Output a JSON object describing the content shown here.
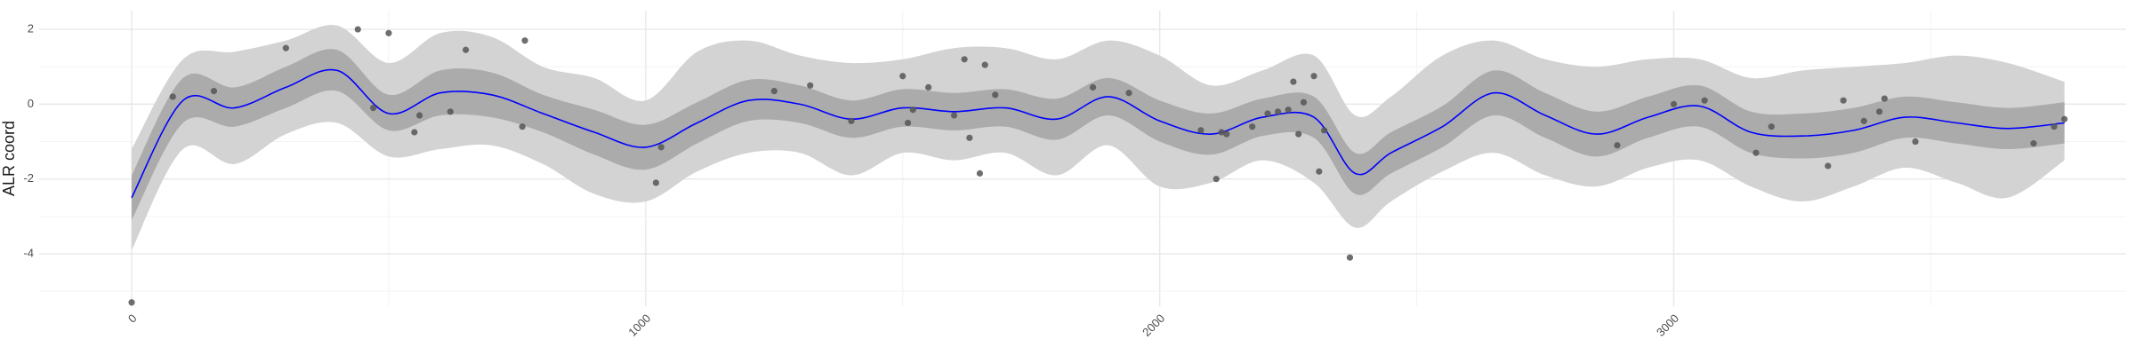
{
  "chart_data": {
    "type": "line",
    "title": "",
    "xlabel": "",
    "ylabel": "ALR coord",
    "xlim": [
      -180,
      3880
    ],
    "ylim": [
      -5.4,
      2.5
    ],
    "x_ticks": [
      0,
      1000,
      2000,
      3000
    ],
    "x_tick_labels": [
      "0",
      "1000",
      "2000",
      "3000"
    ],
    "y_ticks": [
      -4,
      -2,
      0,
      2
    ],
    "y_tick_labels": [
      "-4",
      "-2",
      "0",
      "2"
    ],
    "grid": true,
    "legend": "none",
    "colors": {
      "mean_line": "#0000ff",
      "inner_band": "#ababab",
      "outer_band": "#d3d3d3",
      "points": "#555555",
      "grid_major": "#e8e8e8",
      "grid_minor": "#f3f3f3"
    },
    "series": [
      {
        "kind": "line",
        "x": [
          0,
          100,
          200,
          300,
          400,
          500,
          600,
          700,
          800,
          900,
          1000,
          1100,
          1200,
          1300,
          1400,
          1500,
          1600,
          1700,
          1800,
          1900,
          2000,
          2100,
          2200,
          2300,
          2380,
          2450,
          2550,
          2650,
          2750,
          2850,
          2950,
          3050,
          3150,
          3250,
          3350,
          3450,
          3550,
          3650,
          3760
        ],
        "y": [
          -2.5,
          0.1,
          -0.1,
          0.45,
          0.9,
          -0.25,
          0.3,
          0.25,
          -0.25,
          -0.75,
          -1.15,
          -0.5,
          0.1,
          0.0,
          -0.4,
          -0.1,
          -0.2,
          -0.1,
          -0.4,
          0.2,
          -0.45,
          -0.8,
          -0.35,
          -0.35,
          -1.85,
          -1.3,
          -0.6,
          0.3,
          -0.3,
          -0.8,
          -0.35,
          -0.05,
          -0.75,
          -0.85,
          -0.7,
          -0.35,
          -0.5,
          -0.65,
          -0.5
        ]
      },
      {
        "kind": "band-inner",
        "x": [
          0,
          100,
          200,
          300,
          400,
          500,
          600,
          700,
          800,
          900,
          1000,
          1100,
          1200,
          1300,
          1400,
          1500,
          1600,
          1700,
          1800,
          1900,
          2000,
          2100,
          2200,
          2300,
          2380,
          2450,
          2550,
          2650,
          2750,
          2850,
          2950,
          3050,
          3150,
          3250,
          3350,
          3450,
          3550,
          3650,
          3760
        ],
        "lower": [
          -3.1,
          -0.5,
          -0.6,
          -0.1,
          0.35,
          -0.7,
          -0.3,
          -0.35,
          -0.75,
          -1.35,
          -1.75,
          -1.05,
          -0.45,
          -0.5,
          -0.9,
          -0.6,
          -0.7,
          -0.6,
          -0.95,
          -0.3,
          -1.0,
          -1.35,
          -0.85,
          -0.9,
          -2.4,
          -1.85,
          -1.15,
          -0.3,
          -0.9,
          -1.4,
          -0.9,
          -0.6,
          -1.3,
          -1.45,
          -1.3,
          -0.9,
          -1.05,
          -1.2,
          -1.05
        ],
        "upper": [
          -1.9,
          0.7,
          0.45,
          1.0,
          1.45,
          0.25,
          0.9,
          0.85,
          0.25,
          -0.15,
          -0.55,
          0.05,
          0.65,
          0.5,
          0.1,
          0.4,
          0.3,
          0.4,
          0.15,
          0.7,
          0.1,
          -0.25,
          0.15,
          0.2,
          -1.3,
          -0.75,
          -0.05,
          0.9,
          0.3,
          -0.2,
          0.2,
          0.5,
          -0.2,
          -0.25,
          -0.1,
          0.2,
          0.05,
          -0.1,
          0.05
        ]
      },
      {
        "kind": "band-outer",
        "x": [
          0,
          100,
          200,
          300,
          400,
          500,
          600,
          700,
          800,
          900,
          1000,
          1100,
          1200,
          1300,
          1400,
          1500,
          1600,
          1700,
          1800,
          1900,
          2000,
          2100,
          2200,
          2300,
          2380,
          2450,
          2550,
          2650,
          2750,
          2850,
          2950,
          3050,
          3150,
          3250,
          3350,
          3450,
          3550,
          3650,
          3760
        ],
        "lower": [
          -3.9,
          -1.2,
          -1.6,
          -0.8,
          -0.5,
          -1.4,
          -1.2,
          -1.1,
          -1.6,
          -2.4,
          -2.6,
          -1.8,
          -1.3,
          -1.3,
          -1.9,
          -1.3,
          -1.5,
          -1.3,
          -1.9,
          -1.1,
          -2.2,
          -2.1,
          -1.5,
          -2.1,
          -3.3,
          -2.6,
          -1.8,
          -1.3,
          -1.9,
          -2.2,
          -1.7,
          -1.5,
          -2.2,
          -2.6,
          -2.2,
          -1.7,
          -2.1,
          -2.5,
          -1.5
        ],
        "upper": [
          -1.2,
          1.2,
          1.4,
          1.7,
          2.1,
          1.1,
          1.9,
          1.8,
          1.0,
          0.7,
          0.1,
          1.4,
          1.7,
          1.3,
          1.1,
          1.2,
          1.5,
          1.5,
          1.2,
          1.7,
          1.3,
          0.5,
          0.9,
          1.3,
          -0.3,
          0.2,
          1.3,
          1.7,
          1.2,
          1.0,
          1.2,
          1.2,
          0.7,
          0.9,
          1.0,
          1.1,
          1.3,
          1.1,
          0.6
        ]
      },
      {
        "kind": "points",
        "x": [
          0,
          80,
          160,
          300,
          440,
          470,
          500,
          550,
          560,
          620,
          650,
          760,
          765,
          1020,
          1030,
          1250,
          1320,
          1400,
          1500,
          1510,
          1520,
          1550,
          1600,
          1620,
          1630,
          1650,
          1660,
          1680,
          1870,
          1940,
          2080,
          2110,
          2120,
          2130,
          2180,
          2210,
          2230,
          2250,
          2260,
          2270,
          2280,
          2300,
          2310,
          2320,
          2370,
          2890,
          3000,
          3060,
          3160,
          3190,
          3300,
          3330,
          3370,
          3400,
          3410,
          3470,
          3700,
          3740,
          3760
        ],
        "y": [
          -5.3,
          0.2,
          0.35,
          1.5,
          2.0,
          -0.1,
          1.9,
          -0.75,
          -0.3,
          -0.2,
          1.45,
          -0.6,
          1.7,
          -2.1,
          -1.15,
          0.35,
          0.5,
          -0.45,
          0.75,
          -0.5,
          -0.15,
          0.45,
          -0.3,
          1.2,
          -0.9,
          -1.85,
          1.05,
          0.25,
          0.45,
          0.3,
          -0.7,
          -2.0,
          -0.75,
          -0.8,
          -0.6,
          -0.25,
          -0.2,
          -0.15,
          0.6,
          -0.8,
          0.05,
          0.75,
          -1.8,
          -0.7,
          -4.1,
          -1.1,
          0.0,
          0.1,
          -1.3,
          -0.6,
          -1.65,
          0.1,
          -0.45,
          -0.2,
          0.15,
          -1.0,
          -1.05,
          -0.6,
          -0.4
        ]
      }
    ]
  }
}
